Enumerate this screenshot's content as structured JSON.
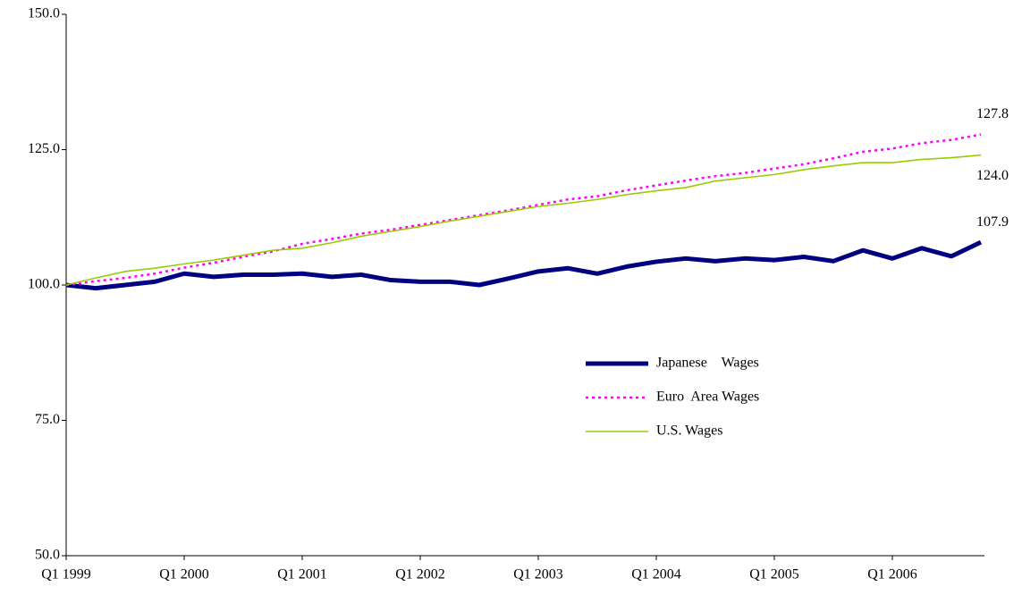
{
  "chart_data": {
    "type": "line",
    "categories": [
      "Q1 1999",
      null,
      null,
      null,
      "Q1 2000",
      null,
      null,
      null,
      "Q1 2001",
      null,
      null,
      null,
      "Q1 2002",
      null,
      null,
      null,
      "Q1 2003",
      null,
      null,
      null,
      "Q1 2004",
      null,
      null,
      null,
      "Q1 2005",
      null,
      null,
      null,
      "Q1 2006",
      null,
      null,
      null
    ],
    "series": [
      {
        "name": "Japanese    Wages",
        "color": "#000080",
        "style": "solid-thick",
        "values": [
          100,
          99.4,
          100,
          100.6,
          102.1,
          101.5,
          101.9,
          101.9,
          102.1,
          101.5,
          101.9,
          100.9,
          100.6,
          100.6,
          100,
          101.2,
          102.5,
          103.1,
          102.1,
          103.4,
          104.3,
          104.9,
          104.4,
          104.9,
          104.6,
          105.2,
          104.4,
          106.4,
          104.9,
          106.8,
          105.3,
          107.9
        ],
        "value_labels": [
          null,
          null,
          null,
          null,
          null,
          null,
          null,
          null,
          null,
          null,
          null,
          null,
          null,
          null,
          null,
          null,
          null,
          null,
          null,
          null,
          null,
          null,
          null,
          null,
          null,
          null,
          null,
          null,
          null,
          null,
          null,
          "107.9"
        ]
      },
      {
        "name": "Euro  Area Wages",
        "color": "#ff00ff",
        "style": "dotted",
        "values": [
          100,
          100.7,
          101.3,
          102.1,
          103.2,
          104.1,
          105.2,
          106.2,
          107.6,
          108.5,
          109.5,
          110.2,
          111.1,
          112,
          112.9,
          113.8,
          114.8,
          115.8,
          116.4,
          117.5,
          118.4,
          119.3,
          120.1,
          120.7,
          121.5,
          122.3,
          123.4,
          124.6,
          125.2,
          126.2,
          126.8,
          127.8
        ],
        "value_labels": [
          null,
          null,
          null,
          null,
          null,
          null,
          null,
          null,
          null,
          null,
          null,
          null,
          null,
          null,
          null,
          null,
          null,
          null,
          null,
          null,
          null,
          null,
          null,
          null,
          null,
          null,
          null,
          null,
          null,
          null,
          null,
          "127.8"
        ]
      },
      {
        "name": "U.S. Wages",
        "color": "#99cc00",
        "style": "solid-thin",
        "values": [
          100,
          101.3,
          102.5,
          103.1,
          103.9,
          104.6,
          105.5,
          106.4,
          106.8,
          107.8,
          109,
          109.9,
          110.8,
          111.8,
          112.7,
          113.6,
          114.5,
          115.1,
          115.8,
          116.7,
          117.4,
          118,
          119.2,
          119.8,
          120.4,
          121.3,
          122,
          122.6,
          122.6,
          123.2,
          123.5,
          124
        ],
        "value_labels": [
          null,
          null,
          null,
          null,
          null,
          null,
          null,
          null,
          null,
          null,
          null,
          null,
          null,
          null,
          null,
          null,
          null,
          null,
          null,
          null,
          null,
          null,
          null,
          null,
          null,
          null,
          null,
          null,
          null,
          null,
          null,
          "124.0"
        ]
      }
    ],
    "ylim": [
      50,
      150
    ],
    "yticks": [
      {
        "value": 50,
        "label": "50.0"
      },
      {
        "value": 75,
        "label": "75.0"
      },
      {
        "value": 100,
        "label": "100.0"
      },
      {
        "value": 125,
        "label": "125.0"
      },
      {
        "value": 150,
        "label": "150.0"
      }
    ],
    "grid": false,
    "legend": "center-right"
  }
}
